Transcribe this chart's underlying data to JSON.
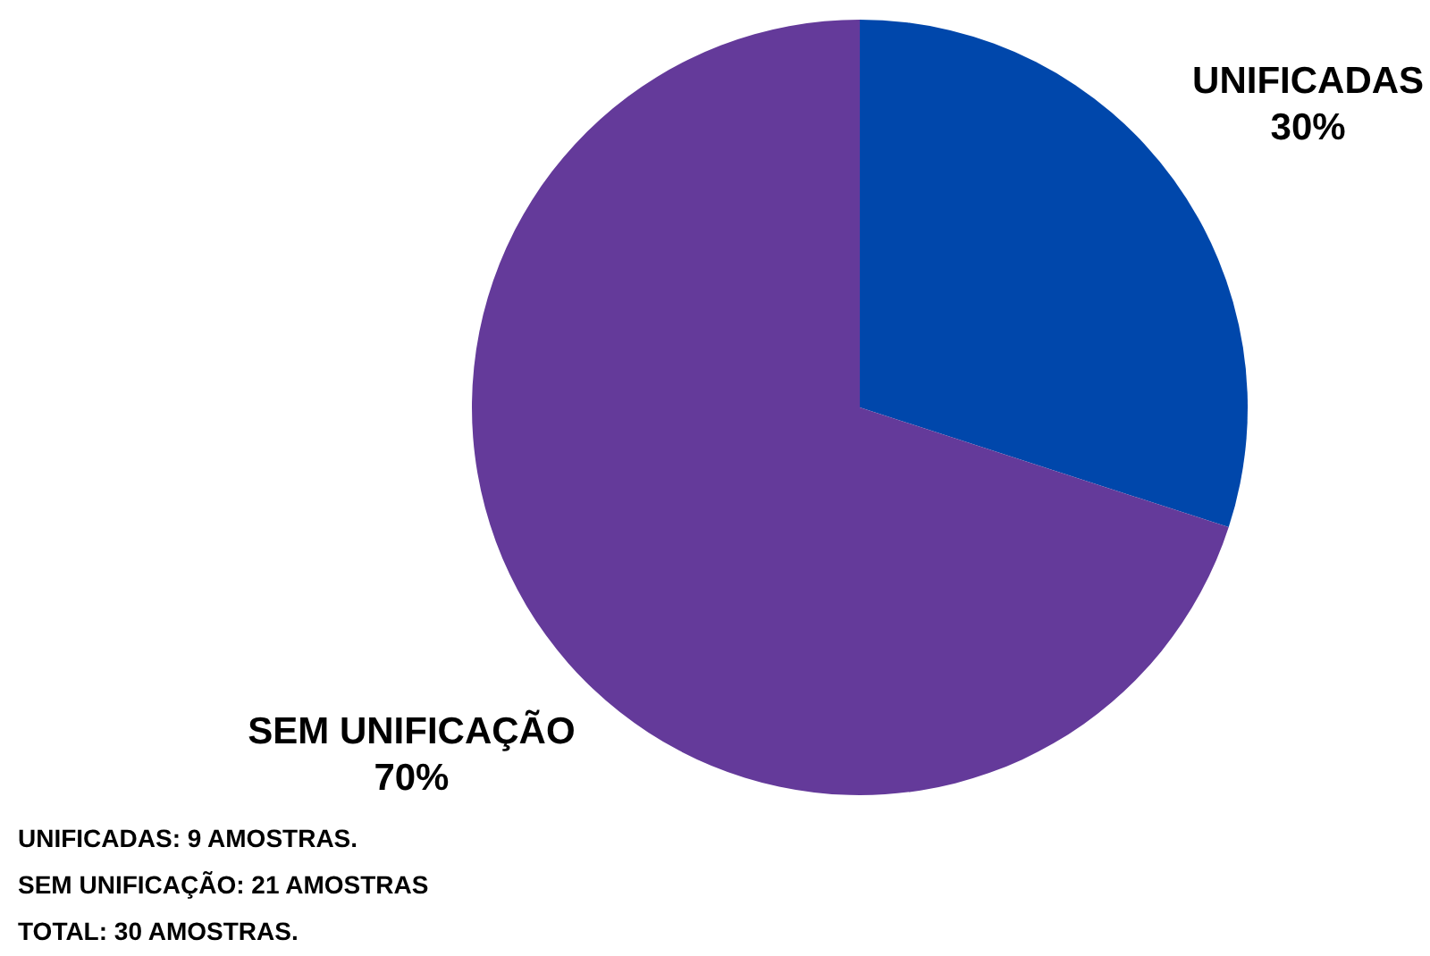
{
  "chart_data": {
    "type": "pie",
    "categories": [
      "UNIFICADAS",
      "SEM UNIFICAÇÃO"
    ],
    "values": [
      30,
      70
    ],
    "colors": [
      "#0047ab",
      "#643a9a"
    ],
    "value_labels": [
      "30%",
      "70%"
    ],
    "annotations": [
      "UNIFICADAS: 9 AMOSTRAS.",
      "SEM UNIFICAÇÃO: 21 AMOSTRAS",
      "TOTAL: 30 AMOSTRAS."
    ]
  }
}
